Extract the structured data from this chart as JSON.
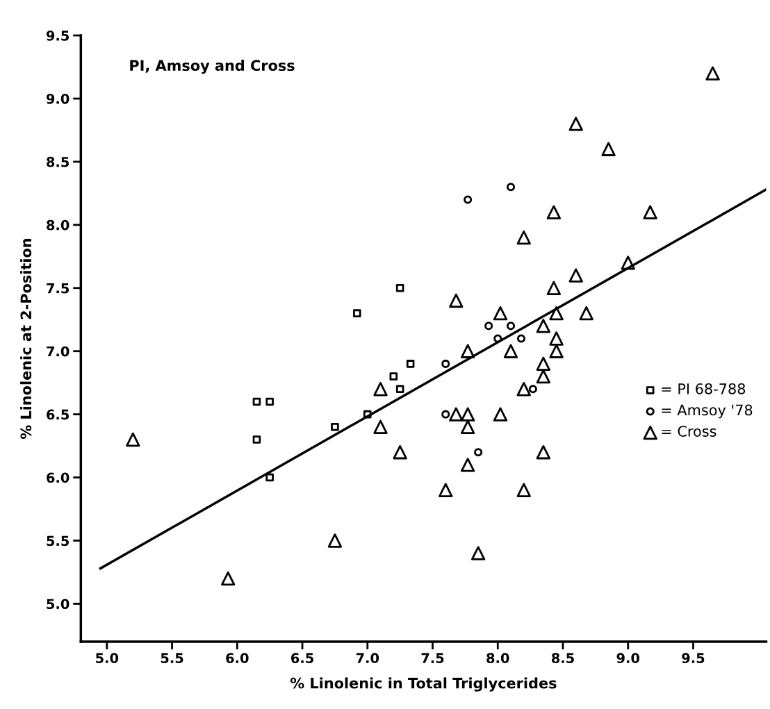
{
  "chart_data": {
    "type": "scatter",
    "xlabel": "% Linolenic in Total Triglycerides",
    "ylabel": "% Linolenic at 2-Position",
    "annotations": [
      "PI, Amsoy and Cross"
    ],
    "xlim": [
      4.8,
      10.06
    ],
    "ylim": [
      4.7,
      9.5
    ],
    "xticks": [
      {
        "value": 5,
        "label": "5.0"
      },
      5.5,
      {
        "value": 6,
        "label": "6.0"
      },
      6.5,
      {
        "value": 7,
        "label": "7.0"
      },
      7.5,
      {
        "value": 8,
        "label": "8.0"
      },
      8.5,
      {
        "value": 9,
        "label": "9.0"
      },
      9.5
    ],
    "yticks": [
      {
        "value": 5,
        "label": "5.0"
      },
      5.5,
      {
        "value": 6,
        "label": "6.0"
      },
      6.5,
      {
        "value": 7,
        "label": "7.0"
      },
      7.5,
      {
        "value": 8,
        "label": "8.0"
      },
      8.5,
      {
        "value": 9,
        "label": "9.0"
      },
      9.5
    ],
    "grid": false,
    "legend": "right",
    "series": [
      {
        "name": "= PI 68-788",
        "marker": "square",
        "color": "#000000",
        "x": [
          7.25,
          6.92,
          7.33,
          7.2,
          7.25,
          7.0,
          6.75,
          6.15,
          6.25,
          6.15,
          6.25
        ],
        "values": [
          7.5,
          7.3,
          6.9,
          6.8,
          6.7,
          6.5,
          6.4,
          6.6,
          6.6,
          6.3,
          6.0
        ]
      },
      {
        "name": "= Amsoy '78",
        "marker": "circle",
        "color": "#000000",
        "x": [
          7.77,
          8.1,
          7.93,
          8.1,
          8.0,
          8.18,
          7.6,
          8.27,
          7.6,
          7.85
        ],
        "values": [
          8.2,
          8.3,
          7.2,
          7.2,
          7.1,
          7.1,
          6.9,
          6.7,
          6.5,
          6.2
        ]
      },
      {
        "name": "= Cross",
        "marker": "triangle",
        "color": "#000000",
        "x": [
          5.2,
          5.93,
          6.75,
          7.1,
          7.1,
          7.25,
          7.6,
          7.68,
          7.77,
          7.68,
          7.77,
          7.77,
          7.77,
          7.85,
          8.02,
          8.02,
          8.1,
          8.2,
          8.2,
          8.2,
          8.35,
          8.35,
          8.35,
          8.35,
          8.43,
          8.43,
          8.45,
          8.45,
          8.45,
          8.6,
          8.6,
          8.68,
          8.85,
          9.0,
          9.17,
          9.65
        ],
        "values": [
          6.3,
          5.2,
          5.5,
          6.7,
          6.4,
          6.2,
          5.9,
          7.4,
          7.0,
          6.5,
          6.5,
          6.4,
          6.1,
          5.4,
          7.3,
          6.5,
          7.0,
          7.9,
          6.7,
          5.9,
          7.2,
          6.9,
          6.8,
          6.2,
          8.1,
          7.5,
          7.3,
          7.1,
          7.0,
          8.8,
          7.6,
          7.3,
          8.6,
          7.7,
          8.1,
          9.2
        ]
      },
      {
        "type": "line",
        "marker": "none",
        "line_style": "solid",
        "color": "#000000",
        "x": [
          4.95,
          10.06
        ],
        "values": [
          5.28,
          8.28
        ]
      }
    ]
  }
}
